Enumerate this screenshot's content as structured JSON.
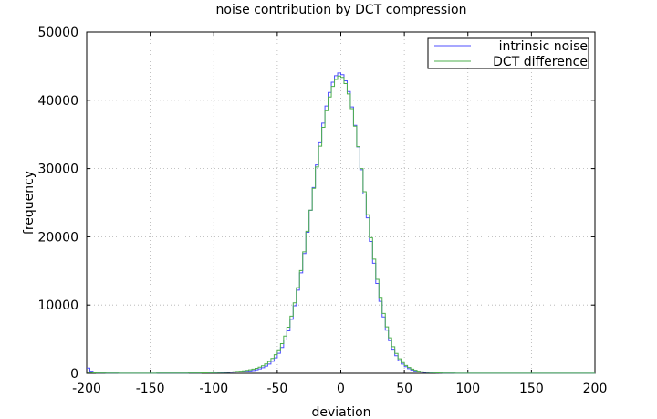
{
  "chart_data": {
    "type": "line",
    "title": "noise contribution by DCT compression",
    "xlabel": "deviation",
    "ylabel": "frequency",
    "xlim": [
      -200,
      200
    ],
    "ylim": [
      0,
      50000
    ],
    "x_ticks": [
      -200,
      -150,
      -100,
      -50,
      0,
      50,
      100,
      150,
      200
    ],
    "y_ticks": [
      0,
      10000,
      20000,
      30000,
      40000,
      50000
    ],
    "x_tick_labels": [
      "-200",
      "-150",
      "-100",
      "-50",
      "0",
      "50",
      "100",
      "150",
      "200"
    ],
    "y_tick_labels": [
      "0",
      "10000",
      "20000",
      "30000",
      "40000",
      "50000"
    ],
    "grid": true,
    "legend_position": "top-right",
    "series": [
      {
        "name": "intrinsic noise",
        "color": "#4f4fff",
        "x": [
          -200,
          -195,
          -190,
          -180,
          -170,
          -160,
          -150,
          -140,
          -130,
          -120,
          -110,
          -100,
          -95,
          -90,
          -85,
          -80,
          -75,
          -70,
          -65,
          -60,
          -55,
          -50,
          -45,
          -40,
          -35,
          -30,
          -25,
          -20,
          -15,
          -10,
          -5,
          0,
          5,
          10,
          15,
          20,
          25,
          30,
          35,
          40,
          45,
          50,
          55,
          60,
          65,
          70,
          75,
          80,
          85,
          90,
          95,
          100,
          110,
          120,
          130,
          140,
          150,
          160,
          170,
          180,
          190,
          200
        ],
        "y": [
          1000,
          80,
          50,
          30,
          20,
          20,
          20,
          30,
          30,
          40,
          60,
          80,
          100,
          130,
          170,
          220,
          280,
          380,
          560,
          900,
          1500,
          2500,
          4200,
          6900,
          10900,
          16000,
          22200,
          28900,
          35400,
          40400,
          43400,
          44200,
          42400,
          37900,
          31600,
          24500,
          17600,
          11700,
          7100,
          4000,
          2100,
          1100,
          550,
          280,
          150,
          90,
          60,
          40,
          30,
          25,
          20,
          20,
          20,
          20,
          20,
          20,
          20,
          20,
          20,
          20,
          20,
          20
        ]
      },
      {
        "name": "DCT difference",
        "color": "#4caf4c",
        "x": [
          -200,
          -195,
          -190,
          -180,
          -170,
          -160,
          -150,
          -140,
          -130,
          -120,
          -110,
          -100,
          -95,
          -90,
          -85,
          -80,
          -75,
          -70,
          -65,
          -60,
          -55,
          -50,
          -45,
          -40,
          -35,
          -30,
          -25,
          -20,
          -15,
          -10,
          -5,
          0,
          5,
          10,
          15,
          20,
          25,
          30,
          35,
          40,
          45,
          50,
          55,
          60,
          65,
          70,
          75,
          80,
          85,
          90,
          95,
          100,
          110,
          120,
          130,
          140,
          150,
          160,
          170,
          180,
          190,
          200
        ],
        "y": [
          200,
          70,
          50,
          30,
          20,
          20,
          20,
          30,
          30,
          40,
          60,
          90,
          120,
          160,
          220,
          300,
          400,
          560,
          800,
          1200,
          1900,
          3000,
          4800,
          7400,
          11300,
          16300,
          22300,
          28700,
          34800,
          39700,
          42800,
          43800,
          42000,
          37700,
          31700,
          24900,
          18200,
          12300,
          7600,
          4400,
          2400,
          1300,
          700,
          360,
          200,
          110,
          70,
          45,
          30,
          25,
          20,
          20,
          20,
          20,
          20,
          20,
          20,
          20,
          20,
          20,
          20,
          20
        ]
      }
    ]
  }
}
